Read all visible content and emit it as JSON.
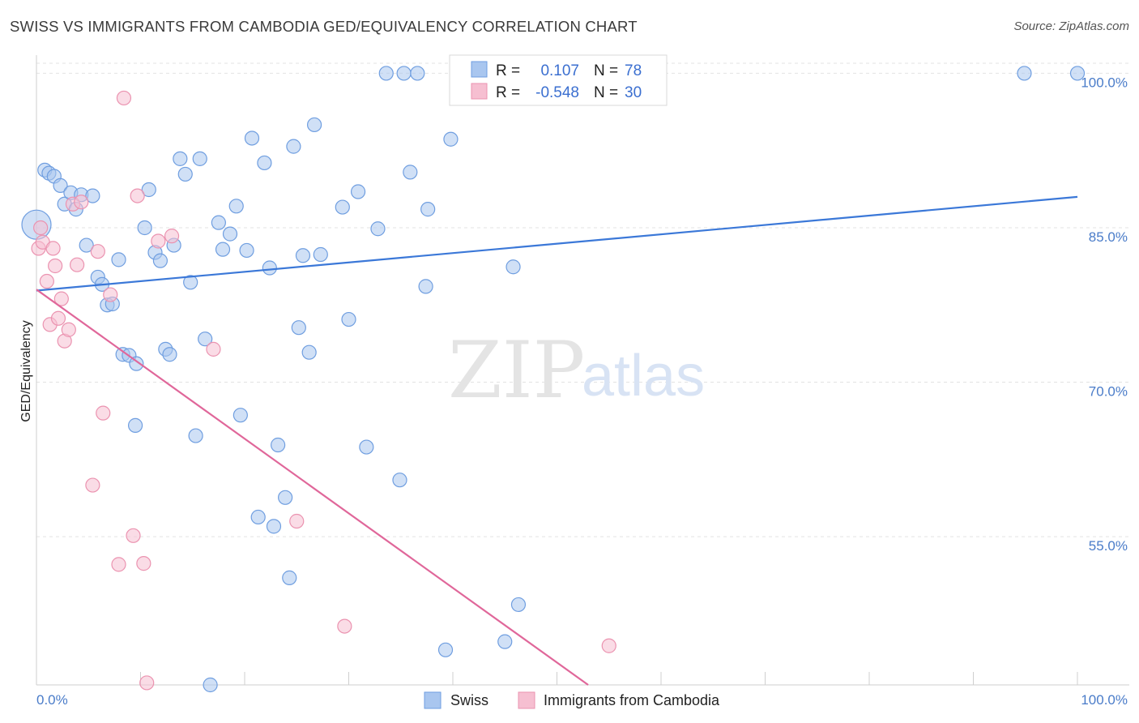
{
  "header": {
    "title": "SWISS VS IMMIGRANTS FROM CAMBODIA GED/EQUIVALENCY CORRELATION CHART",
    "source": "Source: ZipAtlas.com"
  },
  "legend": {
    "r_label": "R =",
    "n_label": "N =",
    "rows": [
      {
        "r": "0.107",
        "n": "78"
      },
      {
        "r": "-0.548",
        "n": "30"
      }
    ]
  },
  "watermark": {
    "zip": "ZIP",
    "atlas": "atlas"
  },
  "bottom_legend": [
    "Swiss",
    "Immigrants from Cambodia"
  ],
  "chart_data": {
    "type": "scatter",
    "title": "SWISS VS IMMIGRANTS FROM CAMBODIA GED/EQUIVALENCY CORRELATION CHART",
    "xlabel": "",
    "ylabel": "GED/Equivalency",
    "xlim": [
      0,
      100
    ],
    "ylim": [
      40.6,
      100.9
    ],
    "x_ticks_labels": [
      "0.0%",
      "100.0%"
    ],
    "y_ticks": [
      55,
      70,
      85,
      100
    ],
    "y_ticks_labels": [
      "55.0%",
      "70.0%",
      "85.0%",
      "100.0%"
    ],
    "grid": true,
    "legend_placement": "top-center",
    "series": [
      {
        "name": "Swiss",
        "color": "#a9c6ef",
        "stroke": "#6f9ee0",
        "line_color": "#3b78d8",
        "r": 0.107,
        "n": 78,
        "trend": [
          [
            0,
            78.9
          ],
          [
            100,
            88.0
          ]
        ],
        "points": [
          [
            0.0,
            85.3
          ],
          [
            0.8,
            90.6
          ],
          [
            1.2,
            90.3
          ],
          [
            1.7,
            90.0
          ],
          [
            2.3,
            89.1
          ],
          [
            2.7,
            87.3
          ],
          [
            3.3,
            88.4
          ],
          [
            3.8,
            86.8
          ],
          [
            4.3,
            88.2
          ],
          [
            5.4,
            88.1
          ],
          [
            4.8,
            83.3
          ],
          [
            5.9,
            80.2
          ],
          [
            6.3,
            79.5
          ],
          [
            6.8,
            77.5
          ],
          [
            7.3,
            77.6
          ],
          [
            7.9,
            81.9
          ],
          [
            8.3,
            72.7
          ],
          [
            8.9,
            72.6
          ],
          [
            9.6,
            71.8
          ],
          [
            9.5,
            65.8
          ],
          [
            10.4,
            85.0
          ],
          [
            10.8,
            88.7
          ],
          [
            11.4,
            82.6
          ],
          [
            11.9,
            81.8
          ],
          [
            12.4,
            73.2
          ],
          [
            12.8,
            72.7
          ],
          [
            13.2,
            83.3
          ],
          [
            13.8,
            91.7
          ],
          [
            14.3,
            90.2
          ],
          [
            14.8,
            79.7
          ],
          [
            15.3,
            64.8
          ],
          [
            15.7,
            91.7
          ],
          [
            16.2,
            74.2
          ],
          [
            16.7,
            40.6
          ],
          [
            17.5,
            85.5
          ],
          [
            17.9,
            82.9
          ],
          [
            18.6,
            84.4
          ],
          [
            19.2,
            87.1
          ],
          [
            19.6,
            66.8
          ],
          [
            20.2,
            82.8
          ],
          [
            20.7,
            93.7
          ],
          [
            21.3,
            56.9
          ],
          [
            21.9,
            91.3
          ],
          [
            22.4,
            81.1
          ],
          [
            22.8,
            56.0
          ],
          [
            23.2,
            63.9
          ],
          [
            23.9,
            58.8
          ],
          [
            24.3,
            51.0
          ],
          [
            24.7,
            92.9
          ],
          [
            25.2,
            75.3
          ],
          [
            25.6,
            82.3
          ],
          [
            26.2,
            72.9
          ],
          [
            26.7,
            95.0
          ],
          [
            27.3,
            82.4
          ],
          [
            29.4,
            87.0
          ],
          [
            30.0,
            76.1
          ],
          [
            30.9,
            88.5
          ],
          [
            31.7,
            63.7
          ],
          [
            32.8,
            84.9
          ],
          [
            33.6,
            100.0
          ],
          [
            34.9,
            60.5
          ],
          [
            35.3,
            100.0
          ],
          [
            35.9,
            90.4
          ],
          [
            36.6,
            100.0
          ],
          [
            37.4,
            79.3
          ],
          [
            37.6,
            86.8
          ],
          [
            39.3,
            44.0
          ],
          [
            39.8,
            93.6
          ],
          [
            41.3,
            100.0
          ],
          [
            41.9,
            100.0
          ],
          [
            45.0,
            44.8
          ],
          [
            45.8,
            81.2
          ],
          [
            46.3,
            48.4
          ],
          [
            47.2,
            100.0
          ],
          [
            49.0,
            100.0
          ],
          [
            50.6,
            100.0
          ],
          [
            94.9,
            100.0
          ],
          [
            100.0,
            100.0
          ]
        ]
      },
      {
        "name": "Immigrants from Cambodia",
        "color": "#f6bfd1",
        "stroke": "#eb93b0",
        "line_color": "#e0679a",
        "r": -0.548,
        "n": 30,
        "trend": [
          [
            0,
            79.0
          ],
          [
            53,
            40.6
          ]
        ],
        "points": [
          [
            0.2,
            83.0
          ],
          [
            0.4,
            85.0
          ],
          [
            0.6,
            83.6
          ],
          [
            1.0,
            79.8
          ],
          [
            1.3,
            75.6
          ],
          [
            1.6,
            83.0
          ],
          [
            1.8,
            81.3
          ],
          [
            2.1,
            76.2
          ],
          [
            2.4,
            78.1
          ],
          [
            2.7,
            74.0
          ],
          [
            3.1,
            75.1
          ],
          [
            3.5,
            87.3
          ],
          [
            3.9,
            81.4
          ],
          [
            4.3,
            87.5
          ],
          [
            5.4,
            60.0
          ],
          [
            5.9,
            82.7
          ],
          [
            6.4,
            67.0
          ],
          [
            7.1,
            78.5
          ],
          [
            7.9,
            52.3
          ],
          [
            8.4,
            97.6
          ],
          [
            9.3,
            55.1
          ],
          [
            9.7,
            88.1
          ],
          [
            10.3,
            52.4
          ],
          [
            10.6,
            40.8
          ],
          [
            11.7,
            83.7
          ],
          [
            13.0,
            84.2
          ],
          [
            17.0,
            73.2
          ],
          [
            25.0,
            56.5
          ],
          [
            29.6,
            46.3
          ],
          [
            55.0,
            44.4
          ]
        ]
      }
    ]
  }
}
